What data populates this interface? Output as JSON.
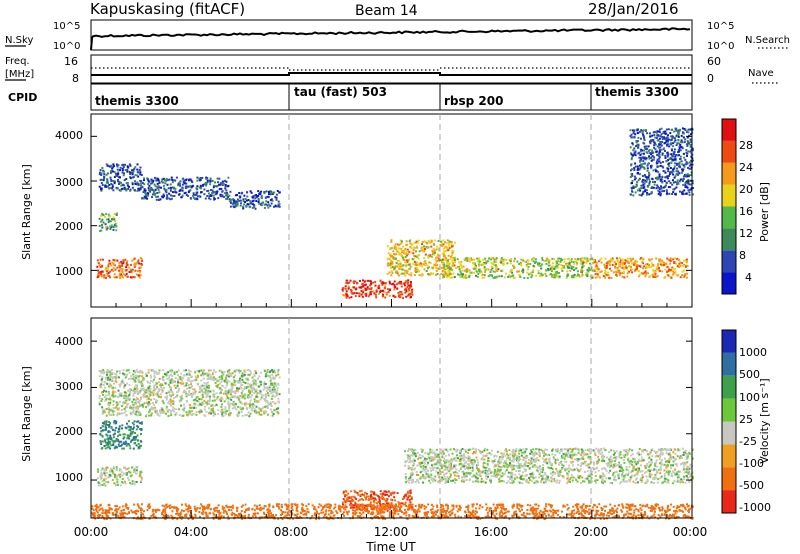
{
  "header": {
    "station": "Kapuskasing (fitACF)",
    "beam": "Beam 14",
    "date": "28/Jan/2016"
  },
  "noise_panel": {
    "left_label": "N.Sky",
    "left_ticks": [
      "10^5",
      "10^0"
    ],
    "right_label": "N.Search",
    "right_ticks": [
      "10^5",
      "10^0"
    ]
  },
  "freq_panel": {
    "left_label_1": "Freq.",
    "left_label_2": "[MHz]",
    "left_ticks": [
      "16",
      "8"
    ],
    "right_label": "Nave",
    "right_ticks": [
      "60",
      "0"
    ]
  },
  "cpid_panel": {
    "label": "CPID",
    "modes": [
      {
        "name": "themis 3300",
        "start_hour": 0
      },
      {
        "name": "tau (fast) 503",
        "start_hour": 8
      },
      {
        "name": "rbsp 200",
        "start_hour": 14
      },
      {
        "name": "themis 3300",
        "start_hour": 20
      }
    ]
  },
  "x_axis": {
    "label": "Time UT",
    "ticks": [
      "00:00",
      "04:00",
      "08:00",
      "12:00",
      "16:00",
      "20:00",
      "00:00"
    ],
    "range_hours": [
      0,
      24
    ]
  },
  "power_panel": {
    "ylabel": "Slant Range [km]",
    "yticks": [
      "4000",
      "3000",
      "2000",
      "1000"
    ],
    "colorbar_title": "Power [dB]",
    "colorbar_ticks": [
      "28",
      "24",
      "20",
      "16",
      "12",
      "8",
      "4"
    ],
    "colors": [
      "#0a14c8",
      "#2d46b4",
      "#3c8a5a",
      "#52b84a",
      "#e8d21a",
      "#f59a1a",
      "#f04a14",
      "#e01010"
    ]
  },
  "velocity_panel": {
    "ylabel": "Slant Range [km]",
    "yticks": [
      "4000",
      "3000",
      "2000",
      "1000"
    ],
    "colorbar_title": "Velocity [m s⁻¹]",
    "colorbar_ticks": [
      "1000",
      "500",
      "100",
      "25",
      "-25",
      "-100",
      "-500",
      "-1000"
    ],
    "colors": [
      "#1a28b4",
      "#2e6ea0",
      "#3ea04a",
      "#6ac83a",
      "#c8c8c0",
      "#f0a020",
      "#f07010",
      "#e82818"
    ],
    "ground_scatter_color": "#c8c8c0"
  },
  "chart_data": {
    "type": "heatmap",
    "title": "Kapuskasing (fitACF)  Beam 14  28/Jan/2016",
    "xlabel": "Time UT",
    "ylabel": "Slant Range [km]",
    "xlim_hours": [
      0,
      24
    ],
    "ylim_km": [
      180,
      4500
    ],
    "grid": false,
    "power_scatter_regions": [
      {
        "t": [
          0.3,
          2.0
        ],
        "r": [
          2800,
          3400
        ],
        "db": 6
      },
      {
        "t": [
          2.0,
          5.5
        ],
        "r": [
          2600,
          3100
        ],
        "db": 6
      },
      {
        "t": [
          5.5,
          7.5
        ],
        "r": [
          2400,
          2800
        ],
        "db": 6
      },
      {
        "t": [
          0.3,
          1.0
        ],
        "r": [
          1900,
          2300
        ],
        "db": 12
      },
      {
        "t": [
          0.2,
          2.0
        ],
        "r": [
          850,
          1300
        ],
        "db": 24
      },
      {
        "t": [
          10.0,
          12.8
        ],
        "r": [
          400,
          800
        ],
        "db": 28
      },
      {
        "t": [
          11.8,
          14.5
        ],
        "r": [
          900,
          1700
        ],
        "db": 20
      },
      {
        "t": [
          14.0,
          20.0
        ],
        "r": [
          850,
          1300
        ],
        "db": 16
      },
      {
        "t": [
          20.0,
          23.8
        ],
        "r": [
          850,
          1300
        ],
        "db": 22
      },
      {
        "t": [
          21.5,
          24.0
        ],
        "r": [
          2700,
          4200
        ],
        "db": 6
      }
    ],
    "velocity_scatter_regions": [
      {
        "t": [
          0.3,
          7.5
        ],
        "r": [
          2400,
          3400
        ],
        "v": 0
      },
      {
        "t": [
          0.3,
          2.0
        ],
        "r": [
          1700,
          2300
        ],
        "v": 100
      },
      {
        "t": [
          0.2,
          2.0
        ],
        "r": [
          900,
          1300
        ],
        "v": 0
      },
      {
        "t": [
          10.0,
          12.8
        ],
        "r": [
          350,
          800
        ],
        "v": -500
      },
      {
        "t": [
          12.5,
          24.0
        ],
        "r": [
          950,
          1700
        ],
        "v": 0
      },
      {
        "t": [
          0.0,
          24.0
        ],
        "r": [
          180,
          500
        ],
        "v": -200
      }
    ]
  }
}
